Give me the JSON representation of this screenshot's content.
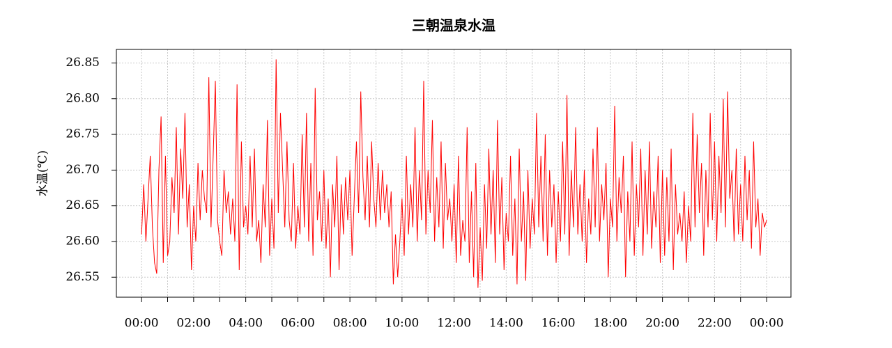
{
  "chart_data": {
    "type": "line",
    "title": "三朝温泉水温",
    "y_label": "水温(℃)",
    "color": "#ff0000",
    "grid": true,
    "xlim": [
      -58,
      1496
    ],
    "ylim": [
      26.522,
      26.869
    ],
    "xticks": [
      {
        "value": 0,
        "label": "00:00"
      },
      {
        "value": 60,
        "label": null
      },
      {
        "value": 120,
        "label": "02:00"
      },
      {
        "value": 180,
        "label": null
      },
      {
        "value": 240,
        "label": "04:00"
      },
      {
        "value": 300,
        "label": null
      },
      {
        "value": 360,
        "label": "06:00"
      },
      {
        "value": 420,
        "label": null
      },
      {
        "value": 480,
        "label": "08:00"
      },
      {
        "value": 540,
        "label": null
      },
      {
        "value": 600,
        "label": "10:00"
      },
      {
        "value": 660,
        "label": null
      },
      {
        "value": 720,
        "label": "12:00"
      },
      {
        "value": 780,
        "label": null
      },
      {
        "value": 840,
        "label": "14:00"
      },
      {
        "value": 900,
        "label": null
      },
      {
        "value": 960,
        "label": "16:00"
      },
      {
        "value": 1020,
        "label": null
      },
      {
        "value": 1080,
        "label": "18:00"
      },
      {
        "value": 1140,
        "label": null
      },
      {
        "value": 1200,
        "label": "20:00"
      },
      {
        "value": 1260,
        "label": null
      },
      {
        "value": 1320,
        "label": "22:00"
      },
      {
        "value": 1380,
        "label": null
      },
      {
        "value": 1440,
        "label": "00:00"
      }
    ],
    "yticks": [
      26.55,
      {
        "value": 26.6,
        "label": "26.60"
      },
      26.65,
      {
        "value": 26.7,
        "label": "26.70"
      },
      26.75,
      {
        "value": 26.8,
        "label": "26.80"
      },
      26.85
    ],
    "x": [
      0,
      5,
      10,
      15,
      20,
      25,
      30,
      35,
      40,
      45,
      50,
      55,
      60,
      65,
      70,
      75,
      80,
      85,
      90,
      95,
      100,
      105,
      110,
      115,
      120,
      125,
      130,
      135,
      140,
      145,
      150,
      155,
      160,
      165,
      170,
      175,
      180,
      185,
      190,
      195,
      200,
      205,
      210,
      215,
      220,
      225,
      230,
      235,
      240,
      245,
      250,
      255,
      260,
      265,
      270,
      275,
      280,
      285,
      290,
      295,
      300,
      305,
      310,
      315,
      320,
      325,
      330,
      335,
      340,
      345,
      350,
      355,
      360,
      365,
      370,
      375,
      380,
      385,
      390,
      395,
      400,
      405,
      410,
      415,
      420,
      425,
      430,
      435,
      440,
      445,
      450,
      455,
      460,
      465,
      470,
      475,
      480,
      485,
      490,
      495,
      500,
      505,
      510,
      515,
      520,
      525,
      530,
      535,
      540,
      545,
      550,
      555,
      560,
      565,
      570,
      575,
      580,
      585,
      590,
      595,
      600,
      605,
      610,
      615,
      620,
      625,
      630,
      635,
      640,
      645,
      650,
      655,
      660,
      665,
      670,
      675,
      680,
      685,
      690,
      695,
      700,
      705,
      710,
      715,
      720,
      725,
      730,
      735,
      740,
      745,
      750,
      755,
      760,
      765,
      770,
      775,
      780,
      785,
      790,
      795,
      800,
      805,
      810,
      815,
      820,
      825,
      830,
      835,
      840,
      845,
      850,
      855,
      860,
      865,
      870,
      875,
      880,
      885,
      890,
      895,
      900,
      905,
      910,
      915,
      920,
      925,
      930,
      935,
      940,
      945,
      950,
      955,
      960,
      965,
      970,
      975,
      980,
      985,
      990,
      995,
      1000,
      1005,
      1010,
      1015,
      1020,
      1025,
      1030,
      1035,
      1040,
      1045,
      1050,
      1055,
      1060,
      1065,
      1070,
      1075,
      1080,
      1085,
      1090,
      1095,
      1100,
      1105,
      1110,
      1115,
      1120,
      1125,
      1130,
      1135,
      1140,
      1145,
      1150,
      1155,
      1160,
      1165,
      1170,
      1175,
      1180,
      1185,
      1190,
      1195,
      1200,
      1205,
      1210,
      1215,
      1220,
      1225,
      1230,
      1235,
      1240,
      1245,
      1250,
      1255,
      1260,
      1265,
      1270,
      1275,
      1280,
      1285,
      1290,
      1295,
      1300,
      1305,
      1310,
      1315,
      1320,
      1325,
      1330,
      1335,
      1340,
      1345,
      1350,
      1355,
      1360,
      1365,
      1370,
      1375,
      1380,
      1385,
      1390,
      1395,
      1400,
      1405,
      1410,
      1415,
      1420,
      1425,
      1430,
      1435,
      1440
    ],
    "values": [
      26.61,
      26.68,
      26.6,
      26.66,
      26.72,
      26.62,
      26.57,
      26.555,
      26.7,
      26.775,
      26.57,
      26.72,
      26.58,
      26.6,
      26.69,
      26.64,
      26.76,
      26.61,
      26.73,
      26.66,
      26.78,
      26.62,
      26.68,
      26.56,
      26.65,
      26.6,
      26.71,
      26.63,
      26.7,
      26.66,
      26.64,
      26.83,
      26.62,
      26.72,
      26.825,
      26.63,
      26.6,
      26.58,
      26.7,
      26.64,
      26.67,
      26.61,
      26.66,
      26.6,
      26.82,
      26.56,
      26.74,
      26.62,
      26.65,
      26.61,
      26.72,
      26.62,
      26.73,
      26.6,
      26.63,
      26.57,
      26.68,
      26.62,
      26.77,
      26.58,
      26.66,
      26.59,
      26.855,
      26.64,
      26.78,
      26.7,
      26.62,
      26.74,
      26.63,
      26.6,
      26.71,
      26.59,
      26.65,
      26.61,
      26.75,
      26.62,
      26.78,
      26.6,
      26.71,
      26.58,
      26.815,
      26.63,
      26.67,
      26.6,
      26.7,
      26.59,
      26.66,
      26.55,
      26.68,
      26.62,
      26.72,
      26.56,
      26.68,
      26.61,
      26.69,
      26.63,
      26.7,
      26.58,
      26.66,
      26.74,
      26.64,
      26.81,
      26.69,
      26.63,
      26.72,
      26.62,
      26.74,
      26.66,
      26.62,
      26.71,
      26.63,
      26.7,
      26.64,
      26.68,
      26.62,
      26.67,
      26.54,
      26.61,
      26.55,
      26.6,
      26.66,
      26.58,
      26.72,
      26.61,
      26.68,
      26.62,
      26.76,
      26.6,
      26.7,
      26.63,
      26.825,
      26.61,
      26.7,
      26.64,
      26.77,
      26.6,
      26.69,
      26.62,
      26.74,
      26.59,
      26.71,
      26.63,
      26.66,
      26.6,
      26.68,
      26.57,
      26.72,
      26.58,
      26.63,
      26.6,
      26.76,
      26.57,
      26.67,
      26.55,
      26.71,
      26.535,
      26.62,
      26.545,
      26.68,
      26.59,
      26.73,
      26.61,
      26.7,
      26.57,
      26.77,
      26.61,
      26.69,
      26.56,
      26.64,
      26.6,
      26.72,
      26.58,
      26.66,
      26.54,
      26.73,
      26.6,
      26.67,
      26.545,
      26.7,
      26.59,
      26.66,
      26.61,
      26.78,
      26.62,
      26.72,
      26.6,
      26.75,
      26.58,
      26.7,
      26.62,
      26.68,
      26.57,
      26.67,
      26.6,
      26.74,
      26.61,
      26.805,
      26.58,
      26.7,
      26.62,
      26.76,
      26.61,
      26.68,
      26.6,
      26.7,
      26.57,
      26.66,
      26.61,
      26.73,
      26.62,
      26.76,
      26.6,
      26.68,
      26.63,
      26.71,
      26.55,
      26.66,
      26.62,
      26.79,
      26.6,
      26.69,
      26.64,
      26.72,
      26.55,
      26.67,
      26.6,
      26.74,
      26.58,
      26.68,
      26.62,
      26.73,
      26.58,
      26.7,
      26.61,
      26.74,
      26.59,
      26.67,
      26.62,
      26.72,
      26.57,
      26.7,
      26.58,
      26.69,
      26.6,
      26.73,
      26.56,
      26.68,
      26.61,
      26.64,
      26.6,
      26.67,
      26.57,
      26.65,
      26.6,
      26.78,
      26.62,
      26.75,
      26.64,
      26.71,
      26.58,
      26.7,
      26.62,
      26.78,
      26.63,
      26.74,
      26.6,
      26.72,
      26.64,
      26.8,
      26.62,
      26.81,
      26.66,
      26.7,
      26.6,
      26.73,
      26.61,
      26.68,
      26.6,
      26.72,
      26.63,
      26.7,
      26.59,
      26.74,
      26.62,
      26.66,
      26.58,
      26.64,
      26.62,
      26.63
    ]
  }
}
